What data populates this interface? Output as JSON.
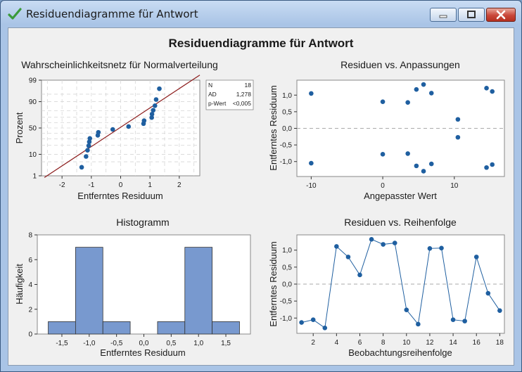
{
  "window": {
    "title": "Residuendiagramme für Antwort"
  },
  "main_title": "Residuendiagramme für Antwort",
  "colors": {
    "point": "#1f5fa0",
    "line": "#1f5fa0",
    "fit_line": "#8b1a1a",
    "bar_fill": "#7899cf",
    "bar_stroke": "#333333",
    "plot_bg": "#ffffff",
    "ref_line": "#aaaaaa"
  },
  "chart_data": [
    {
      "type": "scatter",
      "title": "Wahrscheinlichkeitsnetz für Normalverteilung",
      "xlabel": "Entferntes Residuum",
      "ylabel": "Prozent",
      "x_ticks": [
        "-2",
        "-1",
        "0",
        "1",
        "2"
      ],
      "y_ticks": [
        "1",
        "10",
        "50",
        "90",
        "99"
      ],
      "xlim": [
        -2.7,
        2.7
      ],
      "grid": true,
      "stats": [
        {
          "label": "N",
          "value": "18"
        },
        {
          "label": "AD",
          "value": "1,278"
        },
        {
          "label": "p-Wert",
          "value": "<0,005"
        }
      ],
      "points": [
        {
          "x": -1.33,
          "p": 2.8
        },
        {
          "x": -1.18,
          "p": 8.3
        },
        {
          "x": -1.13,
          "p": 13.9
        },
        {
          "x": -1.09,
          "p": 19.4
        },
        {
          "x": -1.07,
          "p": 25.0
        },
        {
          "x": -1.05,
          "p": 30.6
        },
        {
          "x": -0.78,
          "p": 36.1
        },
        {
          "x": -0.76,
          "p": 41.7
        },
        {
          "x": -0.27,
          "p": 47.2
        },
        {
          "x": 0.27,
          "p": 52.8
        },
        {
          "x": 0.78,
          "p": 58.3
        },
        {
          "x": 0.8,
          "p": 63.9
        },
        {
          "x": 1.06,
          "p": 69.4
        },
        {
          "x": 1.07,
          "p": 75.0
        },
        {
          "x": 1.11,
          "p": 80.6
        },
        {
          "x": 1.17,
          "p": 86.1
        },
        {
          "x": 1.21,
          "p": 91.7
        },
        {
          "x": 1.32,
          "p": 97.2
        }
      ],
      "fit_line": {
        "x": [
          -2.6,
          2.7
        ],
        "p": [
          0.8,
          99.5
        ]
      }
    },
    {
      "type": "scatter",
      "title": "Residuen vs. Anpassungen",
      "xlabel": "Angepasster Wert",
      "ylabel": "Entferntes Residuum",
      "x_ticks": [
        -10,
        0,
        10
      ],
      "y_ticks": [
        1.0,
        0.5,
        0.0,
        -0.5,
        -1.0
      ],
      "xlim": [
        -12,
        17
      ],
      "ylim": [
        -1.45,
        1.45
      ],
      "ref_line_y": 0,
      "points": [
        {
          "x": -10,
          "y": 1.05
        },
        {
          "x": -10,
          "y": -1.05
        },
        {
          "x": 0,
          "y": 0.8
        },
        {
          "x": 0,
          "y": -0.78
        },
        {
          "x": 3.5,
          "y": 0.78
        },
        {
          "x": 3.5,
          "y": -0.76
        },
        {
          "x": 4.7,
          "y": 1.17
        },
        {
          "x": 4.7,
          "y": -1.13
        },
        {
          "x": 5.7,
          "y": 1.32
        },
        {
          "x": 5.7,
          "y": -1.29
        },
        {
          "x": 6.8,
          "y": 1.06
        },
        {
          "x": 6.8,
          "y": -1.07
        },
        {
          "x": 10.5,
          "y": 0.27
        },
        {
          "x": 10.5,
          "y": -0.27
        },
        {
          "x": 14.5,
          "y": 1.21
        },
        {
          "x": 14.5,
          "y": -1.18
        },
        {
          "x": 15.3,
          "y": 1.11
        },
        {
          "x": 15.3,
          "y": -1.09
        }
      ]
    },
    {
      "type": "bar",
      "title": "Histogramm",
      "xlabel": "Entferntes Residuum",
      "ylabel": "Häufigkeit",
      "x_ticks": [
        "-1,5",
        "-1,0",
        "-0,5",
        "0,0",
        "0,5",
        "1,0",
        "1,5"
      ],
      "y_ticks": [
        0,
        2,
        4,
        6,
        8
      ],
      "ylim": [
        0,
        8
      ],
      "bins": [
        {
          "center": -1.5,
          "count": 1
        },
        {
          "center": -1.0,
          "count": 7
        },
        {
          "center": -0.5,
          "count": 1
        },
        {
          "center": 0.0,
          "count": 0
        },
        {
          "center": 0.5,
          "count": 1
        },
        {
          "center": 1.0,
          "count": 7
        },
        {
          "center": 1.5,
          "count": 1
        }
      ],
      "bin_width": 0.5
    },
    {
      "type": "line",
      "title": "Residuen vs. Reihenfolge",
      "xlabel": "Beobachtungsreihenfolge",
      "ylabel": "Entferntes Residuum",
      "x_ticks": [
        2,
        4,
        6,
        8,
        10,
        12,
        14,
        16,
        18
      ],
      "y_ticks": [
        1.0,
        0.5,
        0.0,
        -0.5,
        -1.0
      ],
      "xlim": [
        0.6,
        18.4
      ],
      "ylim": [
        -1.45,
        1.45
      ],
      "ref_line_y": 0,
      "x": [
        1,
        2,
        3,
        4,
        5,
        6,
        7,
        8,
        9,
        10,
        11,
        12,
        13,
        14,
        15,
        16,
        17,
        18
      ],
      "y": [
        -1.13,
        -1.05,
        -1.29,
        1.11,
        0.8,
        0.27,
        1.32,
        1.17,
        1.21,
        -0.76,
        -1.18,
        1.05,
        1.06,
        -1.05,
        -1.09,
        0.8,
        -0.27,
        -0.78
      ]
    }
  ]
}
